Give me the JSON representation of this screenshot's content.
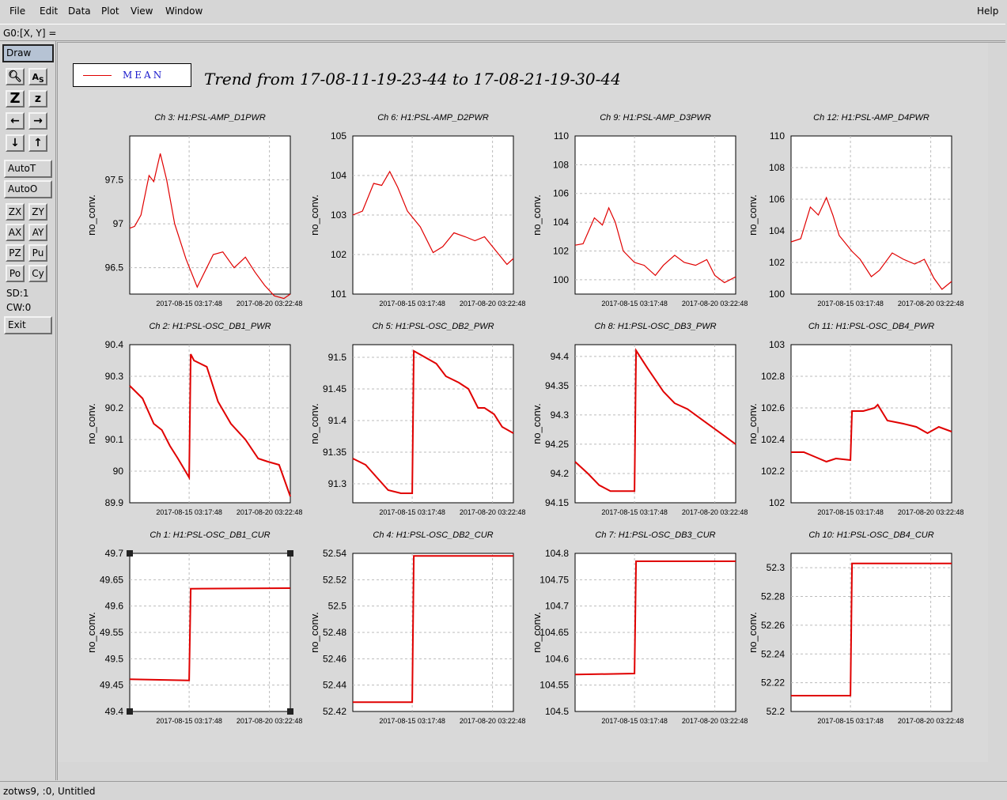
{
  "menu": {
    "file": "File",
    "edit": "Edit",
    "data": "Data",
    "plot": "Plot",
    "view": "View",
    "window": "Window",
    "help": "Help"
  },
  "coord_readout": "G0:[X, Y] =",
  "toolbar": {
    "draw": "Draw",
    "autot": "AutoT",
    "autoo": "AutoO",
    "zx": "ZX",
    "zy": "ZY",
    "ax": "AX",
    "ay": "AY",
    "pz": "PZ",
    "pu": "Pu",
    "po": "Po",
    "cy": "Cy",
    "sd": "SD:1",
    "cw": "CW:0",
    "exit": "Exit"
  },
  "status": "zotws9, :0, Untitled",
  "legend": {
    "label": "MEAN",
    "color": "#e00000"
  },
  "title": "Trend from 17-08-11-19-23-44 to 17-08-21-19-30-44",
  "chart_data": [
    {
      "type": "line",
      "title": "Ch 3: H1:PSL-AMP_D1PWR",
      "ylabel": "no_conv.",
      "ylim": [
        96.2,
        98.0
      ],
      "yticks": [
        "96.5",
        "97",
        "97.5"
      ],
      "ytick_values": [
        96.5,
        97,
        97.5
      ],
      "xticks": [
        "2017-08-15 03:17:48",
        "2017-08-20 03:22:48"
      ],
      "x": [
        0,
        0.03,
        0.07,
        0.12,
        0.15,
        0.19,
        0.23,
        0.28,
        0.35,
        0.42,
        0.52,
        0.58,
        0.65,
        0.72,
        0.78,
        0.84,
        0.9,
        0.96,
        1.0
      ],
      "values": [
        96.95,
        96.97,
        97.1,
        97.55,
        97.48,
        97.8,
        97.5,
        97.0,
        96.6,
        96.28,
        96.65,
        96.68,
        96.5,
        96.62,
        96.45,
        96.3,
        96.18,
        96.15,
        96.2
      ]
    },
    {
      "type": "line",
      "title": "Ch 6: H1:PSL-AMP_D2PWR",
      "ylabel": "no_conv.",
      "ylim": [
        101,
        105
      ],
      "yticks": [
        "101",
        "102",
        "103",
        "104",
        "105"
      ],
      "ytick_values": [
        101,
        102,
        103,
        104,
        105
      ],
      "xticks": [
        "2017-08-15 03:17:48",
        "2017-08-20 03:22:48"
      ],
      "x": [
        0,
        0.06,
        0.13,
        0.18,
        0.23,
        0.28,
        0.34,
        0.42,
        0.5,
        0.56,
        0.63,
        0.7,
        0.76,
        0.82,
        0.9,
        0.96,
        1.0
      ],
      "values": [
        103.0,
        103.1,
        103.8,
        103.75,
        104.1,
        103.7,
        103.1,
        102.7,
        102.05,
        102.2,
        102.55,
        102.45,
        102.35,
        102.45,
        102.05,
        101.75,
        101.9
      ]
    },
    {
      "type": "line",
      "title": "Ch 9: H1:PSL-AMP_D3PWR",
      "ylabel": "no_conv.",
      "ylim": [
        99,
        110
      ],
      "yticks": [
        "100",
        "102",
        "104",
        "106",
        "108",
        "110"
      ],
      "ytick_values": [
        100,
        102,
        104,
        106,
        108,
        110
      ],
      "xticks": [
        "2017-08-15 03:17:48",
        "2017-08-20 03:22:48"
      ],
      "x": [
        0,
        0.05,
        0.12,
        0.17,
        0.21,
        0.25,
        0.3,
        0.37,
        0.43,
        0.5,
        0.55,
        0.62,
        0.68,
        0.75,
        0.82,
        0.87,
        0.93,
        1.0
      ],
      "values": [
        102.4,
        102.5,
        104.3,
        103.8,
        105.0,
        104.0,
        102.0,
        101.2,
        101.0,
        100.3,
        101.0,
        101.7,
        101.2,
        101.0,
        101.4,
        100.3,
        99.8,
        100.2
      ]
    },
    {
      "type": "line",
      "title": "Ch 12: H1:PSL-AMP_D4PWR",
      "ylabel": "no_conv.",
      "ylim": [
        100,
        110
      ],
      "yticks": [
        "100",
        "102",
        "104",
        "106",
        "108",
        "110"
      ],
      "ytick_values": [
        100,
        102,
        104,
        106,
        108,
        110
      ],
      "xticks": [
        "2017-08-15 03:17:48",
        "2017-08-20 03:22:48"
      ],
      "x": [
        0,
        0.06,
        0.12,
        0.17,
        0.22,
        0.26,
        0.3,
        0.38,
        0.43,
        0.5,
        0.55,
        0.63,
        0.7,
        0.77,
        0.83,
        0.89,
        0.94,
        1.0
      ],
      "values": [
        103.3,
        103.5,
        105.5,
        105.0,
        106.1,
        105.0,
        103.7,
        102.7,
        102.2,
        101.1,
        101.5,
        102.6,
        102.2,
        101.9,
        102.2,
        101.0,
        100.3,
        100.8
      ]
    },
    {
      "type": "line",
      "title": "Ch 2: H1:PSL-OSC_DB1_PWR",
      "ylabel": "no_conv.",
      "ylim": [
        89.9,
        90.4
      ],
      "yticks": [
        "89.9",
        "90",
        "90.1",
        "90.2",
        "90.3",
        "90.4"
      ],
      "ytick_values": [
        89.9,
        90,
        90.1,
        90.2,
        90.3,
        90.4
      ],
      "xticks": [
        "2017-08-15 03:17:48",
        "2017-08-20 03:22:48"
      ],
      "x": [
        0,
        0.08,
        0.15,
        0.2,
        0.25,
        0.3,
        0.37,
        0.38,
        0.4,
        0.44,
        0.48,
        0.55,
        0.63,
        0.72,
        0.8,
        0.86,
        0.93,
        1.0
      ],
      "values": [
        90.27,
        90.23,
        90.15,
        90.13,
        90.08,
        90.04,
        89.98,
        90.37,
        90.35,
        90.34,
        90.33,
        90.22,
        90.15,
        90.1,
        90.04,
        90.03,
        90.02,
        89.92
      ]
    },
    {
      "type": "line",
      "title": "Ch 5: H1:PSL-OSC_DB2_PWR",
      "ylabel": "no_conv.",
      "ylim": [
        91.27,
        91.52
      ],
      "yticks": [
        "91.3",
        "91.35",
        "91.4",
        "91.45",
        "91.5"
      ],
      "ytick_values": [
        91.3,
        91.35,
        91.4,
        91.45,
        91.5
      ],
      "xticks": [
        "2017-08-15 03:17:48",
        "2017-08-20 03:22:48"
      ],
      "x": [
        0,
        0.08,
        0.15,
        0.22,
        0.3,
        0.37,
        0.38,
        0.45,
        0.52,
        0.58,
        0.66,
        0.72,
        0.78,
        0.82,
        0.88,
        0.93,
        1.0
      ],
      "values": [
        91.34,
        91.33,
        91.31,
        91.29,
        91.285,
        91.285,
        91.51,
        91.5,
        91.49,
        91.47,
        91.46,
        91.45,
        91.42,
        91.42,
        91.41,
        91.39,
        91.38
      ]
    },
    {
      "type": "line",
      "title": "Ch 8: H1:PSL-OSC_DB3_PWR",
      "ylabel": "no_conv.",
      "ylim": [
        94.15,
        94.42
      ],
      "yticks": [
        "94.15",
        "94.2",
        "94.25",
        "94.3",
        "94.35",
        "94.4"
      ],
      "ytick_values": [
        94.15,
        94.2,
        94.25,
        94.3,
        94.35,
        94.4
      ],
      "xticks": [
        "2017-08-15 03:17:48",
        "2017-08-20 03:22:48"
      ],
      "x": [
        0,
        0.08,
        0.15,
        0.22,
        0.3,
        0.37,
        0.38,
        0.45,
        0.55,
        0.62,
        0.7,
        0.8,
        0.9,
        1.0
      ],
      "values": [
        94.22,
        94.2,
        94.18,
        94.17,
        94.17,
        94.17,
        94.41,
        94.38,
        94.34,
        94.32,
        94.31,
        94.29,
        94.27,
        94.25
      ]
    },
    {
      "type": "line",
      "title": "Ch 11: H1:PSL-OSC_DB4_PWR",
      "ylabel": "no_conv.",
      "ylim": [
        102,
        103
      ],
      "yticks": [
        "102",
        "102.2",
        "102.4",
        "102.6",
        "102.8",
        "103"
      ],
      "ytick_values": [
        102,
        102.2,
        102.4,
        102.6,
        102.8,
        103
      ],
      "xticks": [
        "2017-08-15 03:17:48",
        "2017-08-20 03:22:48"
      ],
      "x": [
        0,
        0.08,
        0.15,
        0.22,
        0.28,
        0.37,
        0.38,
        0.45,
        0.52,
        0.54,
        0.6,
        0.7,
        0.78,
        0.85,
        0.92,
        1.0
      ],
      "values": [
        102.32,
        102.32,
        102.29,
        102.26,
        102.28,
        102.27,
        102.58,
        102.58,
        102.6,
        102.62,
        102.52,
        102.5,
        102.48,
        102.44,
        102.48,
        102.45
      ]
    },
    {
      "type": "line",
      "title": "Ch 1: H1:PSL-OSC_DB1_CUR",
      "ylabel": "no_conv.",
      "ylim": [
        49.4,
        49.7
      ],
      "yticks": [
        "49.4",
        "49.45",
        "49.5",
        "49.55",
        "49.6",
        "49.65",
        "49.7"
      ],
      "ytick_values": [
        49.4,
        49.45,
        49.5,
        49.55,
        49.6,
        49.65,
        49.7
      ],
      "xticks": [
        "2017-08-15 03:17:48",
        "2017-08-20 03:22:48"
      ],
      "x": [
        0,
        0.37,
        0.38,
        1.0
      ],
      "values": [
        49.461,
        49.459,
        49.633,
        49.634
      ]
    },
    {
      "type": "line",
      "title": "Ch 4: H1:PSL-OSC_DB2_CUR",
      "ylabel": "no_conv.",
      "ylim": [
        52.42,
        52.54
      ],
      "yticks": [
        "52.42",
        "52.44",
        "52.46",
        "52.48",
        "52.5",
        "52.52",
        "52.54"
      ],
      "ytick_values": [
        52.42,
        52.44,
        52.46,
        52.48,
        52.5,
        52.52,
        52.54
      ],
      "xticks": [
        "2017-08-15 03:17:48",
        "2017-08-20 03:22:48"
      ],
      "x": [
        0,
        0.37,
        0.38,
        1.0
      ],
      "values": [
        52.427,
        52.427,
        52.538,
        52.538
      ]
    },
    {
      "type": "line",
      "title": "Ch 7: H1:PSL-OSC_DB3_CUR",
      "ylabel": "no_conv.",
      "ylim": [
        104.5,
        104.8
      ],
      "yticks": [
        "104.5",
        "104.55",
        "104.6",
        "104.65",
        "104.7",
        "104.75",
        "104.8"
      ],
      "ytick_values": [
        104.5,
        104.55,
        104.6,
        104.65,
        104.7,
        104.75,
        104.8
      ],
      "xticks": [
        "2017-08-15 03:17:48",
        "2017-08-20 03:22:48"
      ],
      "x": [
        0,
        0.37,
        0.38,
        1.0
      ],
      "values": [
        104.57,
        104.572,
        104.785,
        104.785
      ]
    },
    {
      "type": "line",
      "title": "Ch 10: H1:PSL-OSC_DB4_CUR",
      "ylabel": "no_conv.",
      "ylim": [
        52.2,
        52.31
      ],
      "yticks": [
        "52.2",
        "52.22",
        "52.24",
        "52.26",
        "52.28",
        "52.3"
      ],
      "ytick_values": [
        52.2,
        52.22,
        52.24,
        52.26,
        52.28,
        52.3
      ],
      "xticks": [
        "2017-08-15 03:17:48",
        "2017-08-20 03:22:48"
      ],
      "x": [
        0,
        0.37,
        0.38,
        1.0
      ],
      "values": [
        52.211,
        52.211,
        52.303,
        52.303
      ]
    }
  ]
}
